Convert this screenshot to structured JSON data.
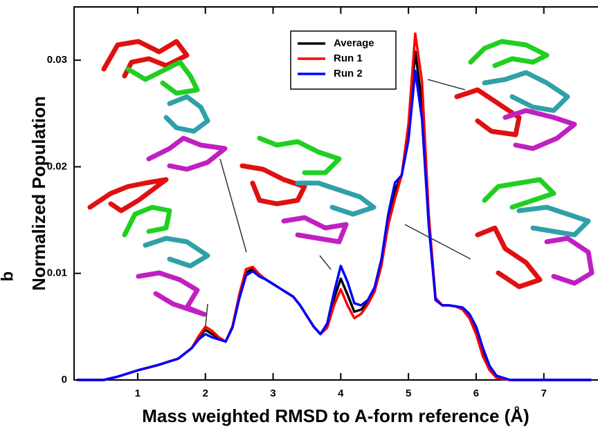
{
  "chart_data": {
    "type": "line",
    "panel_label": "b",
    "xlabel": "Mass weighted RMSD to A-form reference (Å)",
    "ylabel": "Normalized Population",
    "x": [
      0.1,
      0.5,
      0.7,
      1.0,
      1.3,
      1.6,
      1.8,
      1.9,
      2.0,
      2.1,
      2.2,
      2.3,
      2.4,
      2.5,
      2.6,
      2.7,
      2.8,
      2.9,
      3.0,
      3.1,
      3.2,
      3.3,
      3.4,
      3.5,
      3.6,
      3.7,
      3.8,
      3.9,
      4.0,
      4.1,
      4.2,
      4.3,
      4.4,
      4.5,
      4.6,
      4.7,
      4.8,
      4.9,
      5.0,
      5.1,
      5.2,
      5.3,
      5.4,
      5.5,
      5.6,
      5.7,
      5.8,
      5.9,
      6.0,
      6.1,
      6.2,
      6.3,
      6.5,
      7.0,
      7.7
    ],
    "series": [
      {
        "name": "Average",
        "color": "#000000",
        "values": [
          0,
          0,
          0.0003,
          0.0009,
          0.0014,
          0.002,
          0.003,
          0.004,
          0.0047,
          0.0043,
          0.0039,
          0.0036,
          0.005,
          0.0078,
          0.0101,
          0.0104,
          0.0098,
          0.0094,
          0.009,
          0.0086,
          0.0082,
          0.0078,
          0.007,
          0.006,
          0.005,
          0.0043,
          0.0051,
          0.0076,
          0.0095,
          0.008,
          0.0064,
          0.0066,
          0.0073,
          0.0085,
          0.011,
          0.015,
          0.0178,
          0.0192,
          0.0235,
          0.0308,
          0.026,
          0.015,
          0.0076,
          0.007,
          0.007,
          0.0069,
          0.0067,
          0.006,
          0.0046,
          0.0026,
          0.0011,
          0.0003,
          0,
          0,
          0
        ]
      },
      {
        "name": "Run 1",
        "color": "#ff0000",
        "values": [
          0,
          0,
          0.0003,
          0.0009,
          0.0014,
          0.002,
          0.003,
          0.0041,
          0.005,
          0.0046,
          0.004,
          0.0036,
          0.005,
          0.008,
          0.0104,
          0.0106,
          0.0099,
          0.0094,
          0.009,
          0.0086,
          0.0082,
          0.0078,
          0.007,
          0.006,
          0.005,
          0.0043,
          0.0049,
          0.007,
          0.0085,
          0.007,
          0.0058,
          0.0062,
          0.0071,
          0.0083,
          0.0107,
          0.0145,
          0.017,
          0.0192,
          0.024,
          0.0325,
          0.028,
          0.0155,
          0.0077,
          0.007,
          0.007,
          0.0069,
          0.0066,
          0.0058,
          0.0043,
          0.0022,
          0.0009,
          0.0002,
          0,
          0,
          0
        ]
      },
      {
        "name": "Run 2",
        "color": "#0000ff",
        "values": [
          0,
          0,
          0.0003,
          0.0009,
          0.0014,
          0.002,
          0.003,
          0.0038,
          0.0043,
          0.004,
          0.0038,
          0.0036,
          0.0049,
          0.0076,
          0.0098,
          0.0102,
          0.0097,
          0.0094,
          0.009,
          0.0086,
          0.0082,
          0.0078,
          0.007,
          0.006,
          0.005,
          0.0043,
          0.0053,
          0.0082,
          0.0107,
          0.0092,
          0.0072,
          0.007,
          0.0075,
          0.0087,
          0.0113,
          0.0155,
          0.0185,
          0.0192,
          0.0225,
          0.029,
          0.0245,
          0.0145,
          0.0075,
          0.007,
          0.007,
          0.0069,
          0.0068,
          0.0062,
          0.005,
          0.003,
          0.0013,
          0.0004,
          0,
          0,
          0
        ]
      }
    ],
    "xlim": [
      0.06,
      7.8
    ],
    "ylim": [
      0,
      0.035
    ],
    "xticks": [
      1,
      2,
      3,
      4,
      5,
      6,
      7
    ],
    "yticks": [
      0,
      0.01,
      0.02,
      0.03
    ],
    "legend": "upper center"
  }
}
